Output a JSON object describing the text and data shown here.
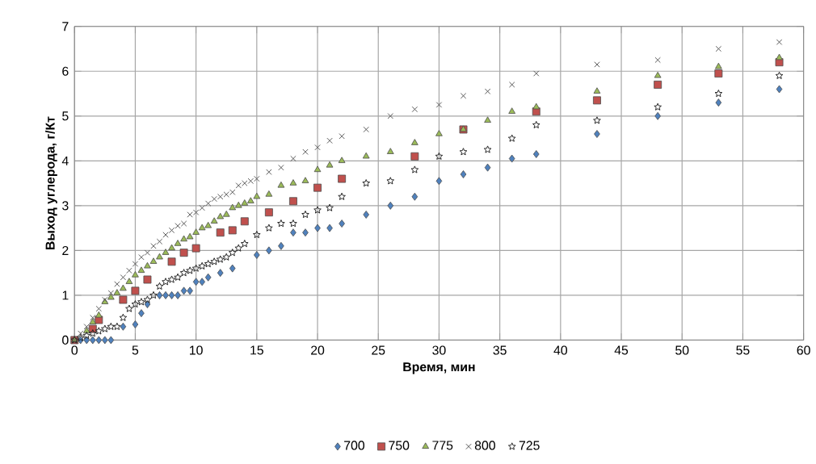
{
  "chart_data": {
    "type": "scatter",
    "xlabel": "Время, мин",
    "ylabel": "Выход углерода, г/Кт",
    "xlim": [
      0,
      60
    ],
    "xticks": [
      0,
      5,
      10,
      15,
      20,
      25,
      30,
      35,
      40,
      45,
      50,
      55,
      60
    ],
    "ylim": [
      0,
      7
    ],
    "yticks": [
      0,
      1,
      2,
      3,
      4,
      5,
      6,
      7
    ],
    "grid": true,
    "legend": "bottom",
    "series": [
      {
        "name": "700",
        "color": "#4f81bd",
        "marker": "diamond",
        "x": [
          0.5,
          1,
          1.5,
          2,
          2.5,
          3,
          4,
          5,
          5.5,
          6,
          7,
          7.5,
          8,
          8.5,
          9,
          9.5,
          10,
          10.5,
          11,
          12,
          13,
          15,
          16,
          17,
          18,
          19,
          20,
          21,
          22,
          24,
          26,
          28,
          30,
          32,
          34,
          36,
          38,
          43,
          48,
          53,
          58
        ],
        "values": [
          0,
          0,
          0,
          0,
          0,
          0,
          0.3,
          0.35,
          0.6,
          0.8,
          1.0,
          1.0,
          1.0,
          1.0,
          1.1,
          1.1,
          1.3,
          1.3,
          1.4,
          1.5,
          1.6,
          1.9,
          2.0,
          2.1,
          2.4,
          2.4,
          2.5,
          2.5,
          2.6,
          2.8,
          3.0,
          3.2,
          3.55,
          3.7,
          3.85,
          4.05,
          4.15,
          4.6,
          5.0,
          5.3,
          5.6
        ]
      },
      {
        "name": "750",
        "color": "#c0504d",
        "marker": "square",
        "x": [
          0,
          0.5,
          1.5,
          2,
          4,
          5,
          6,
          8,
          9,
          10,
          12,
          13,
          14,
          16,
          18,
          20,
          22,
          28,
          32,
          38,
          43,
          48,
          53,
          58
        ],
        "values": [
          0,
          null,
          0.25,
          0.45,
          0.9,
          1.1,
          1.35,
          1.75,
          1.95,
          2.05,
          2.4,
          2.45,
          2.65,
          2.85,
          3.1,
          3.4,
          3.6,
          4.1,
          4.7,
          5.1,
          5.35,
          5.7,
          5.95,
          6.2
        ]
      },
      {
        "name": "775",
        "color": "#9bbb59",
        "marker": "triangle",
        "x": [
          0,
          0.5,
          1,
          1.5,
          2,
          2.5,
          3,
          3.5,
          4,
          4.5,
          5,
          5.5,
          6,
          6.5,
          7,
          7.5,
          8,
          8.5,
          9,
          9.5,
          10,
          10.5,
          11,
          11.5,
          12,
          12.5,
          13,
          13.5,
          14,
          14.5,
          15,
          16,
          17,
          18,
          19,
          20,
          21,
          22,
          24,
          26,
          28,
          30,
          32,
          34,
          36,
          38,
          43,
          48,
          53,
          58
        ],
        "values": [
          0,
          null,
          0.2,
          0.4,
          0.55,
          0.85,
          0.95,
          1.05,
          1.15,
          1.3,
          1.45,
          1.55,
          1.65,
          1.75,
          1.85,
          1.95,
          2.05,
          2.15,
          2.25,
          2.3,
          2.4,
          2.5,
          2.55,
          2.65,
          2.75,
          2.8,
          2.95,
          3.0,
          3.05,
          3.1,
          3.2,
          3.25,
          3.45,
          3.5,
          3.55,
          3.8,
          3.9,
          4.0,
          4.1,
          4.2,
          4.4,
          4.6,
          4.7,
          4.9,
          5.1,
          5.2,
          5.55,
          5.9,
          6.1,
          6.3
        ]
      },
      {
        "name": "800",
        "color": "#595959",
        "marker": "cross",
        "x": [
          0,
          0.5,
          1,
          1.5,
          2,
          2.5,
          3,
          3.5,
          4,
          4.5,
          5,
          5.5,
          6,
          6.5,
          7,
          7.5,
          8,
          8.5,
          9,
          9.5,
          10,
          10.5,
          11,
          11.5,
          12,
          12.5,
          13,
          13.5,
          14,
          14.5,
          15,
          16,
          17,
          18,
          19,
          20,
          21,
          22,
          24,
          26,
          28,
          30,
          32,
          34,
          36,
          38,
          43,
          48,
          53,
          58
        ],
        "values": [
          0,
          0.15,
          0.3,
          0.5,
          0.7,
          0.9,
          1.05,
          1.25,
          1.4,
          1.55,
          1.7,
          1.85,
          1.95,
          2.1,
          2.2,
          2.35,
          2.45,
          2.55,
          2.6,
          2.8,
          2.85,
          2.95,
          3.05,
          3.15,
          3.2,
          3.25,
          3.3,
          3.45,
          3.5,
          3.55,
          3.6,
          3.75,
          3.85,
          4.05,
          4.2,
          4.3,
          4.45,
          4.55,
          4.7,
          5.0,
          5.15,
          5.25,
          5.45,
          5.55,
          5.7,
          5.95,
          6.15,
          6.25,
          6.5,
          6.65
        ]
      },
      {
        "name": "725",
        "color": "#262626",
        "marker": "star",
        "x": [
          0,
          0.5,
          1,
          1.5,
          2,
          2.5,
          3,
          3.5,
          4,
          4.5,
          5,
          5.5,
          6,
          6.5,
          7,
          7.5,
          8,
          8.5,
          9,
          9.5,
          10,
          10.5,
          11,
          11.5,
          12,
          12.5,
          13,
          13.5,
          14,
          15,
          16,
          17,
          18,
          19,
          20,
          21,
          22,
          24,
          26,
          28,
          30,
          32,
          34,
          36,
          38,
          43,
          48,
          53,
          58
        ],
        "values": [
          0,
          0.05,
          0.1,
          0.15,
          0.2,
          0.25,
          0.3,
          0.3,
          0.5,
          0.7,
          0.8,
          0.85,
          0.9,
          1.0,
          1.2,
          1.3,
          1.35,
          1.4,
          1.5,
          1.55,
          1.6,
          1.65,
          1.7,
          1.75,
          1.8,
          1.85,
          1.95,
          2.05,
          2.15,
          2.35,
          2.5,
          2.6,
          2.6,
          2.8,
          2.9,
          2.95,
          3.2,
          3.5,
          3.55,
          3.8,
          4.1,
          4.2,
          4.25,
          4.5,
          4.8,
          4.9,
          5.2,
          5.5,
          5.9
        ]
      }
    ]
  }
}
